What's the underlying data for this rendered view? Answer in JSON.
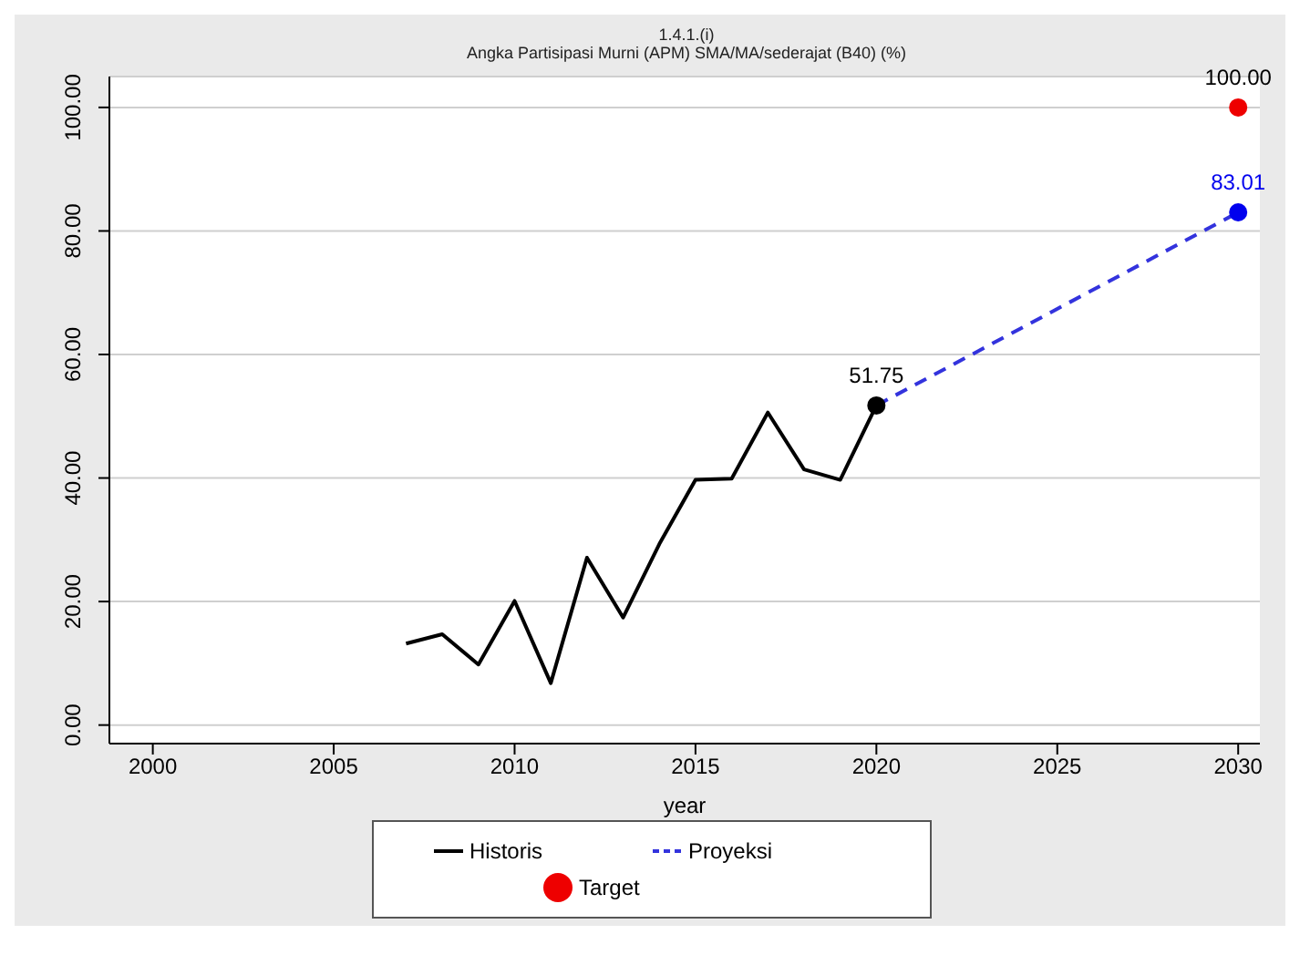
{
  "chart_data": {
    "type": "line",
    "title": "1.4.1.(i)",
    "subtitle": "Angka Partisipasi Murni (APM) SMA/MA/sederajat (B40) (%)",
    "xlabel": "year",
    "xlim": [
      1998.8,
      2030.6
    ],
    "xticks": [
      2000,
      2005,
      2010,
      2015,
      2020,
      2025,
      2030
    ],
    "ylim": [
      -3,
      105
    ],
    "yticks": [
      {
        "value": 0,
        "label": "0.00"
      },
      {
        "value": 20,
        "label": "20.00"
      },
      {
        "value": 40,
        "label": "40.00"
      },
      {
        "value": 60,
        "label": "60.00"
      },
      {
        "value": 80,
        "label": "80.00"
      },
      {
        "value": 100,
        "label": "100.00"
      }
    ],
    "grid": "y",
    "legend": "bottom",
    "series": [
      {
        "name": "Historis",
        "color": "#000000",
        "line_style": "solid",
        "marker": "none",
        "x": [
          2007,
          2008,
          2009,
          2010,
          2011,
          2012,
          2013,
          2014,
          2015,
          2016,
          2017,
          2018,
          2019,
          2020
        ],
        "values": [
          13.2,
          14.7,
          9.8,
          20.1,
          6.8,
          27.1,
          17.4,
          29.3,
          39.7,
          39.9,
          50.6,
          41.4,
          39.7,
          51.75
        ]
      },
      {
        "name": "Proyeksi",
        "color": "#3333dd",
        "line_style": "dashed",
        "marker": "none",
        "x": [
          2020,
          2030
        ],
        "values": [
          51.75,
          83.01
        ]
      },
      {
        "type": "scatter",
        "color": "#000000",
        "marker": "circle",
        "x": [
          2020
        ],
        "values": [
          51.75
        ],
        "value_labels": [
          "51.75"
        ]
      },
      {
        "type": "scatter",
        "color": "#0000ee",
        "marker": "circle",
        "x": [
          2030
        ],
        "values": [
          83.01
        ],
        "value_labels": [
          "83.01"
        ]
      },
      {
        "name": "Target",
        "type": "scatter",
        "color": "#ee0000",
        "marker": "circle",
        "x": [
          2030
        ],
        "values": [
          100
        ],
        "value_labels": [
          "100.00"
        ]
      }
    ]
  }
}
